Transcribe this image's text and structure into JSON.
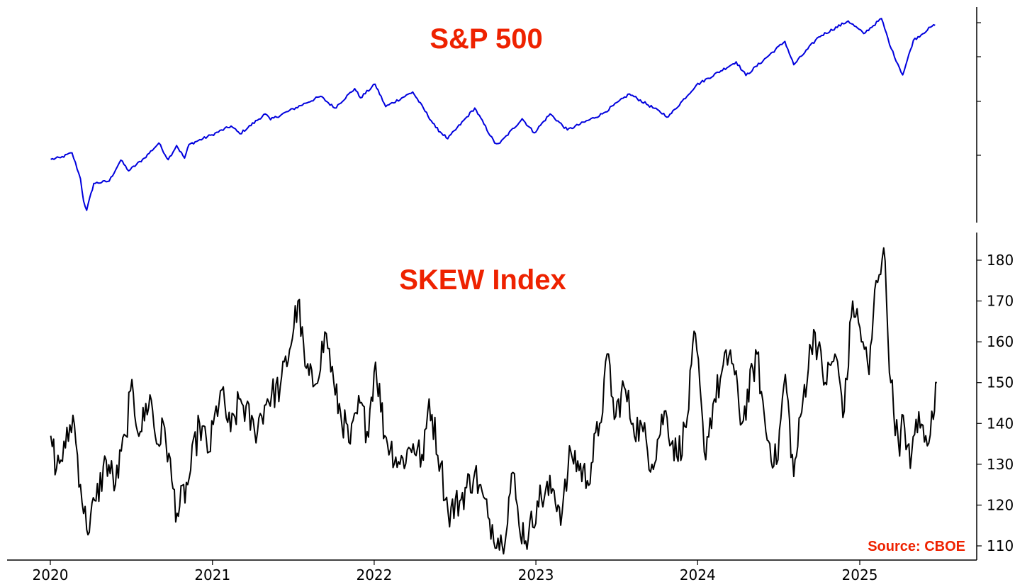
{
  "chart_data": [
    {
      "type": "line",
      "title": "S&P 500",
      "y_axis_side": "right",
      "yticks_labeled": false,
      "series": [
        {
          "color": "#0000dd",
          "points": [
            [
              "2020-01-02",
              3245
            ],
            [
              "2020-01-24",
              3280
            ],
            [
              "2020-02-19",
              3380
            ],
            [
              "2020-03-09",
              2850
            ],
            [
              "2020-03-16",
              2390
            ],
            [
              "2020-03-23",
              2200
            ],
            [
              "2020-04-08",
              2750
            ],
            [
              "2020-05-13",
              2800
            ],
            [
              "2020-06-08",
              3230
            ],
            [
              "2020-06-26",
              3010
            ],
            [
              "2020-07-31",
              3270
            ],
            [
              "2020-09-02",
              3580
            ],
            [
              "2020-09-23",
              3240
            ],
            [
              "2020-10-12",
              3530
            ],
            [
              "2020-10-30",
              3270
            ],
            [
              "2020-11-09",
              3550
            ],
            [
              "2020-12-31",
              3750
            ],
            [
              "2021-02-12",
              3930
            ],
            [
              "2021-03-04",
              3770
            ],
            [
              "2021-04-30",
              4180
            ],
            [
              "2021-05-12",
              4060
            ],
            [
              "2021-07-30",
              4400
            ],
            [
              "2021-09-02",
              4540
            ],
            [
              "2021-10-04",
              4300
            ],
            [
              "2021-11-18",
              4700
            ],
            [
              "2021-12-01",
              4510
            ],
            [
              "2022-01-03",
              4790
            ],
            [
              "2022-01-27",
              4330
            ],
            [
              "2022-03-29",
              4630
            ],
            [
              "2022-05-20",
              3900
            ],
            [
              "2022-06-16",
              3670
            ],
            [
              "2022-08-16",
              4300
            ],
            [
              "2022-09-30",
              3580
            ],
            [
              "2022-10-12",
              3580
            ],
            [
              "2022-12-01",
              4080
            ],
            [
              "2022-12-28",
              3790
            ],
            [
              "2023-02-02",
              4180
            ],
            [
              "2023-03-13",
              3850
            ],
            [
              "2023-05-31",
              4180
            ],
            [
              "2023-07-31",
              4590
            ],
            [
              "2023-10-27",
              4120
            ],
            [
              "2023-12-29",
              4770
            ],
            [
              "2024-03-28",
              5250
            ],
            [
              "2024-04-19",
              4970
            ],
            [
              "2024-07-16",
              5670
            ],
            [
              "2024-08-05",
              5190
            ],
            [
              "2024-09-30",
              5760
            ],
            [
              "2024-12-06",
              6090
            ],
            [
              "2025-01-10",
              5830
            ],
            [
              "2025-02-19",
              6140
            ],
            [
              "2025-03-13",
              5520
            ],
            [
              "2025-04-08",
              4980
            ],
            [
              "2025-05-02",
              5690
            ],
            [
              "2025-06-13",
              5980
            ],
            [
              "2025-06-20",
              6000
            ]
          ]
        }
      ]
    },
    {
      "type": "line",
      "title": "SKEW Index",
      "y_axis_side": "right",
      "ylim": [
        107,
        186
      ],
      "yticks": [
        110,
        120,
        130,
        140,
        150,
        160,
        170,
        180
      ],
      "xticks": [
        "2020",
        "2021",
        "2022",
        "2023",
        "2024",
        "2025"
      ],
      "annotation": "Source: CBOE",
      "annotation_color": "#ee2200",
      "series": [
        {
          "color": "#000000",
          "points": [
            [
              "2020-01-02",
              137
            ],
            [
              "2020-01-15",
              129
            ],
            [
              "2020-02-04",
              134
            ],
            [
              "2020-02-21",
              142
            ],
            [
              "2020-03-09",
              125
            ],
            [
              "2020-03-23",
              114
            ],
            [
              "2020-04-13",
              121
            ],
            [
              "2020-05-06",
              131
            ],
            [
              "2020-05-27",
              125
            ],
            [
              "2020-06-19",
              137
            ],
            [
              "2020-06-30",
              148
            ],
            [
              "2020-07-22",
              138
            ],
            [
              "2020-08-13",
              147
            ],
            [
              "2020-08-28",
              135
            ],
            [
              "2020-09-15",
              139
            ],
            [
              "2020-10-01",
              126
            ],
            [
              "2020-10-13",
              118
            ],
            [
              "2020-11-06",
              125
            ],
            [
              "2020-12-03",
              140
            ],
            [
              "2020-12-24",
              133
            ],
            [
              "2021-01-19",
              148
            ],
            [
              "2021-02-11",
              138
            ],
            [
              "2021-03-05",
              146
            ],
            [
              "2021-04-06",
              138
            ],
            [
              "2021-05-05",
              146
            ],
            [
              "2021-06-03",
              149
            ],
            [
              "2021-06-24",
              158
            ],
            [
              "2021-07-13",
              170
            ],
            [
              "2021-07-29",
              154
            ],
            [
              "2021-08-16",
              149
            ],
            [
              "2021-09-15",
              162
            ],
            [
              "2021-10-05",
              147
            ],
            [
              "2021-11-08",
              135
            ],
            [
              "2021-11-30",
              145
            ],
            [
              "2021-12-16",
              138
            ],
            [
              "2022-01-04",
              155
            ],
            [
              "2022-01-25",
              137
            ],
            [
              "2022-02-28",
              130
            ],
            [
              "2022-03-30",
              135
            ],
            [
              "2022-04-22",
              131
            ],
            [
              "2022-05-05",
              146
            ],
            [
              "2022-05-31",
              130
            ],
            [
              "2022-06-17",
              118
            ],
            [
              "2022-07-13",
              121
            ],
            [
              "2022-08-16",
              128
            ],
            [
              "2022-09-15",
              117
            ],
            [
              "2022-10-17",
              110
            ],
            [
              "2022-11-10",
              128
            ],
            [
              "2022-11-24",
              115
            ],
            [
              "2022-12-15",
              112
            ],
            [
              "2023-01-04",
              121
            ],
            [
              "2023-02-08",
              124
            ],
            [
              "2023-03-01",
              118
            ],
            [
              "2023-03-21",
              133
            ],
            [
              "2023-04-27",
              126
            ],
            [
              "2023-05-25",
              140
            ],
            [
              "2023-06-14",
              157
            ],
            [
              "2023-06-27",
              141
            ],
            [
              "2023-07-19",
              149
            ],
            [
              "2023-08-08",
              140
            ],
            [
              "2023-08-31",
              138
            ],
            [
              "2023-09-20",
              130
            ],
            [
              "2023-10-18",
              143
            ],
            [
              "2023-11-15",
              132
            ],
            [
              "2023-12-06",
              139
            ],
            [
              "2023-12-27",
              162
            ],
            [
              "2024-01-16",
              133
            ],
            [
              "2024-02-08",
              146
            ],
            [
              "2024-03-15",
              158
            ],
            [
              "2024-04-10",
              140
            ],
            [
              "2024-05-14",
              157
            ],
            [
              "2024-06-03",
              138
            ],
            [
              "2024-06-27",
              130
            ],
            [
              "2024-07-17",
              152
            ],
            [
              "2024-08-05",
              127
            ],
            [
              "2024-08-26",
              146
            ],
            [
              "2024-09-19",
              163
            ],
            [
              "2024-10-15",
              150
            ],
            [
              "2024-11-06",
              157
            ],
            [
              "2024-11-27",
              143
            ],
            [
              "2024-12-16",
              170
            ],
            [
              "2025-01-08",
              160
            ],
            [
              "2025-01-22",
              152
            ],
            [
              "2025-02-07",
              175
            ],
            [
              "2025-02-24",
              183
            ],
            [
              "2025-03-12",
              150
            ],
            [
              "2025-04-01",
              132
            ],
            [
              "2025-04-09",
              142
            ],
            [
              "2025-04-25",
              129
            ],
            [
              "2025-05-08",
              141
            ],
            [
              "2025-05-30",
              137
            ],
            [
              "2025-06-16",
              141
            ],
            [
              "2025-06-24",
              150
            ]
          ]
        }
      ]
    }
  ],
  "colors": {
    "title": "#ee2200",
    "spx_line": "#0000dd",
    "skew_line": "#000000"
  }
}
